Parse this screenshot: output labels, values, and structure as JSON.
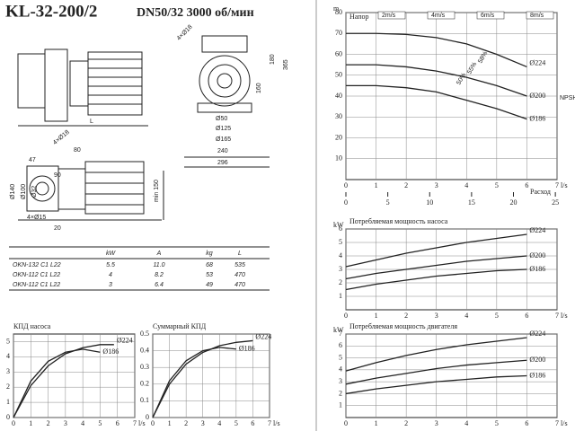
{
  "header": {
    "title": "KL-32-200/2",
    "subtitle": "DN50/32  3000 об/мин"
  },
  "drawing": {
    "labels": [
      "4×Ø18",
      "180",
      "365",
      "L",
      "160",
      "Ø50",
      "Ø125",
      "Ø165",
      "240",
      "296",
      "80",
      "47",
      "4×Ø18",
      "Ø32",
      "Ø100",
      "Ø140",
      "4×Ø15",
      "90",
      "20",
      "min 150"
    ]
  },
  "table": {
    "header": [
      "kW",
      "A",
      "kg",
      "L"
    ],
    "rows": [
      [
        "OKN-132 C1 L22",
        "5.5",
        "11.0",
        "68",
        "535"
      ],
      [
        "OKN-112 C1 L22",
        "4",
        "8.2",
        "53",
        "470"
      ],
      [
        "OKN-112 C1 L22",
        "3",
        "6.4",
        "49",
        "470"
      ]
    ]
  },
  "chart_data": [
    {
      "type": "line",
      "title": "Напор",
      "y_unit": "m",
      "x_unit": "l/s",
      "xlim": [
        0,
        7
      ],
      "xticks": [
        0,
        1,
        2,
        3,
        4,
        5,
        6,
        7
      ],
      "ylim": [
        0,
        80
      ],
      "yticks": [
        10,
        20,
        30,
        40,
        50,
        60,
        70,
        80
      ],
      "grid": true,
      "x2lim": [
        0,
        25.2
      ],
      "x2ticks": [
        0,
        5,
        10,
        15,
        20,
        25
      ],
      "x2_label": "Расход",
      "y2_label": "NPSH m",
      "speed_labels": [
        "2m/s",
        "4m/s",
        "6m/s",
        "8m/s"
      ],
      "annotations": [
        "50%",
        "55%",
        "58%"
      ],
      "series": [
        {
          "name": "Ø224",
          "color": "#222",
          "x": [
            0,
            1,
            2,
            3,
            4,
            5,
            6
          ],
          "values": [
            70,
            70,
            69.5,
            68,
            65,
            60,
            54
          ]
        },
        {
          "name": "Ø200",
          "color": "#222",
          "x": [
            0,
            1,
            2,
            3,
            4,
            5,
            6
          ],
          "values": [
            55,
            55,
            54,
            52,
            49,
            45,
            40
          ]
        },
        {
          "name": "Ø186",
          "color": "#222",
          "x": [
            0,
            1,
            2,
            3,
            4,
            5,
            6
          ],
          "values": [
            45,
            45,
            44,
            42,
            38,
            34,
            29
          ]
        }
      ]
    },
    {
      "type": "line",
      "title": "Потребляемая мощность насоса",
      "y_unit": "kW",
      "x_unit": "l/s",
      "xlim": [
        0,
        7
      ],
      "xticks": [
        0,
        1,
        2,
        3,
        4,
        5,
        6,
        7
      ],
      "ylim": [
        0,
        6
      ],
      "yticks": [
        1,
        2,
        3,
        4,
        5,
        6
      ],
      "grid": true,
      "series": [
        {
          "name": "Ø224",
          "color": "#222",
          "x": [
            0,
            1,
            2,
            3,
            4,
            5,
            6
          ],
          "values": [
            3.2,
            3.7,
            4.2,
            4.6,
            5.0,
            5.3,
            5.6
          ]
        },
        {
          "name": "Ø200",
          "color": "#222",
          "x": [
            0,
            1,
            2,
            3,
            4,
            5,
            6
          ],
          "values": [
            2.3,
            2.7,
            3.0,
            3.3,
            3.6,
            3.8,
            4.0
          ]
        },
        {
          "name": "Ø186",
          "color": "#222",
          "x": [
            0,
            1,
            2,
            3,
            4,
            5,
            6
          ],
          "values": [
            1.5,
            1.9,
            2.2,
            2.5,
            2.7,
            2.9,
            3.0
          ]
        }
      ]
    },
    {
      "type": "line",
      "title": "Потребляемая мощность двигателя",
      "y_unit": "kW",
      "x_unit": "l/s",
      "xlim": [
        0,
        7
      ],
      "xticks": [
        0,
        1,
        2,
        3,
        4,
        5,
        6,
        7
      ],
      "ylim": [
        0,
        7
      ],
      "yticks": [
        1,
        2,
        3,
        4,
        5,
        6,
        7
      ],
      "grid": true,
      "series": [
        {
          "name": "Ø224",
          "color": "#222",
          "x": [
            0,
            1,
            2,
            3,
            4,
            5,
            6
          ],
          "values": [
            3.9,
            4.6,
            5.2,
            5.7,
            6.1,
            6.4,
            6.7
          ]
        },
        {
          "name": "Ø200",
          "color": "#222",
          "x": [
            0,
            1,
            2,
            3,
            4,
            5,
            6
          ],
          "values": [
            2.8,
            3.3,
            3.7,
            4.1,
            4.4,
            4.6,
            4.8
          ]
        },
        {
          "name": "Ø186",
          "color": "#222",
          "x": [
            0,
            1,
            2,
            3,
            4,
            5,
            6
          ],
          "values": [
            2.0,
            2.4,
            2.7,
            3.0,
            3.2,
            3.4,
            3.5
          ]
        }
      ]
    },
    {
      "type": "line",
      "title": "КПД насоса",
      "x_unit": "l/s",
      "xlim": [
        0,
        7
      ],
      "xticks": [
        0,
        1,
        2,
        3,
        4,
        5,
        6,
        7
      ],
      "ylim": [
        0,
        5.5
      ],
      "yticks": [
        0,
        1,
        2,
        3,
        4,
        5
      ],
      "grid": true,
      "series": [
        {
          "name": "Ø224",
          "color": "#222",
          "x": [
            0,
            1,
            2,
            3,
            4,
            5,
            5.8
          ],
          "values": [
            0,
            2.1,
            3.4,
            4.2,
            4.6,
            4.8,
            4.8
          ]
        },
        {
          "name": "Ø186",
          "color": "#222",
          "x": [
            0,
            1,
            2,
            3,
            4,
            5
          ],
          "values": [
            0,
            2.4,
            3.7,
            4.3,
            4.5,
            4.3
          ]
        }
      ]
    },
    {
      "type": "line",
      "title": "Суммарный КПД",
      "x_unit": "l/s",
      "xlim": [
        0,
        7
      ],
      "xticks": [
        0,
        1,
        2,
        3,
        4,
        5,
        6,
        7
      ],
      "ylim": [
        0,
        0.5
      ],
      "yticks": [
        0,
        0.1,
        0.2,
        0.3,
        0.4,
        0.5
      ],
      "grid": true,
      "series": [
        {
          "name": "Ø224",
          "color": "#222",
          "x": [
            0,
            1,
            2,
            3,
            4,
            5,
            6
          ],
          "values": [
            0,
            0.2,
            0.32,
            0.39,
            0.43,
            0.45,
            0.46
          ]
        },
        {
          "name": "Ø186",
          "color": "#222",
          "x": [
            0,
            1,
            2,
            3,
            4,
            5
          ],
          "values": [
            0,
            0.22,
            0.34,
            0.4,
            0.42,
            0.41
          ]
        }
      ]
    }
  ]
}
